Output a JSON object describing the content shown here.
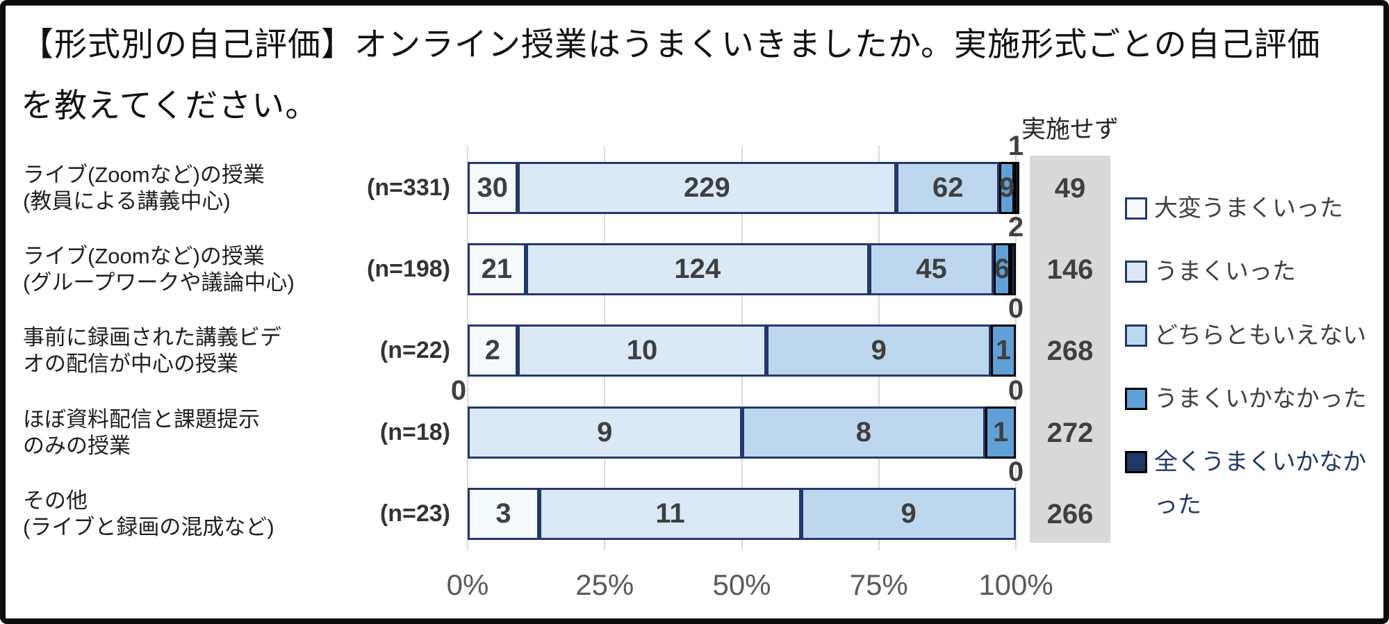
{
  "title_lines": [
    "【形式別の自己評価】オンライン授業はうまくいきましたか。実施形式ごとの自己評価",
    "を教えてください。"
  ],
  "not_implemented_header": "実施せず",
  "colors": {
    "palette": [
      "#f5fafd",
      "#dbe9f7",
      "#bdd7ee",
      "#61a0d7",
      "#1f3864"
    ],
    "segment_borders": [
      "#24386b",
      "#24386b",
      "#24386b",
      "#000000",
      "#000000"
    ],
    "grid": "#d9d9d9",
    "not_implemented_bg": "#d9d9d9",
    "value_text": "#3f3f3f",
    "axis_text": "#595959",
    "frame_border": "#0b0b0b"
  },
  "legend": [
    {
      "label": "大変うまくいった",
      "fill": "#f5fafd",
      "border": "#24386b",
      "text_color": "#404040"
    },
    {
      "label": "うまくいった",
      "fill": "#dbe9f7",
      "border": "#24386b",
      "text_color": "#404040"
    },
    {
      "label": "どちらともいえない",
      "fill": "#bdd7ee",
      "border": "#24386b",
      "text_color": "#404040"
    },
    {
      "label": "うまくいかなかった",
      "fill": "#61a0d7",
      "border": "#000000",
      "text_color": "#404040"
    },
    {
      "label": "全くうまくいかなかった",
      "fill": "#1f3864",
      "border": "#000000",
      "text_color": "#1f3864"
    }
  ],
  "chart_data": {
    "type": "bar",
    "stacked": true,
    "orientation": "horizontal",
    "title": "【形式別の自己評価】オンライン授業はうまくいきましたか。実施形式ごとの自己評価を教えてください。",
    "series_names": [
      "大変うまくいった",
      "うまくいった",
      "どちらともいえない",
      "うまくいかなかった",
      "全くうまくいかなかった"
    ],
    "x_ticks": [
      "0%",
      "25%",
      "50%",
      "75%",
      "100%"
    ],
    "xlim": [
      0,
      100
    ],
    "grid": true,
    "legend_position": "right",
    "extra_column_header": "実施せず",
    "rows": [
      {
        "category_lines": [
          "ライブ(Zoomなど)の授業",
          "(教員による講義中心)"
        ],
        "n_label": "(n=331)",
        "n": 331,
        "values": [
          30,
          229,
          62,
          9,
          1
        ],
        "outside_labels": [
          {
            "text": "1",
            "anchor": "right"
          }
        ],
        "not_implemented": 49
      },
      {
        "category_lines": [
          "ライブ(Zoomなど)の授業",
          "(グループワークや議論中心)"
        ],
        "n_label": "(n=198)",
        "n": 198,
        "values": [
          21,
          124,
          45,
          6,
          2
        ],
        "outside_labels": [
          {
            "text": "2",
            "anchor": "right"
          }
        ],
        "not_implemented": 146
      },
      {
        "category_lines": [
          "事前に録画された講義ビデ",
          "オの配信が中心の授業"
        ],
        "n_label": "(n=22)",
        "n": 22,
        "values": [
          2,
          10,
          9,
          1,
          0
        ],
        "outside_labels": [
          {
            "text": "0",
            "anchor": "right"
          }
        ],
        "not_implemented": 268
      },
      {
        "category_lines": [
          "ほぼ資料配信と課題提示",
          "のみの授業"
        ],
        "n_label": "(n=18)",
        "n": 18,
        "values": [
          0,
          9,
          8,
          1,
          0
        ],
        "outside_labels": [
          {
            "text": "0",
            "anchor": "left"
          },
          {
            "text": "0",
            "anchor": "right"
          }
        ],
        "not_implemented": 272
      },
      {
        "category_lines": [
          "その他",
          "(ライブと録画の混成など)"
        ],
        "n_label": "(n=23)",
        "n": 23,
        "values": [
          3,
          11,
          9,
          0,
          0
        ],
        "outside_labels": [
          {
            "text": "0",
            "anchor": "right"
          }
        ],
        "not_implemented": 266
      }
    ]
  }
}
